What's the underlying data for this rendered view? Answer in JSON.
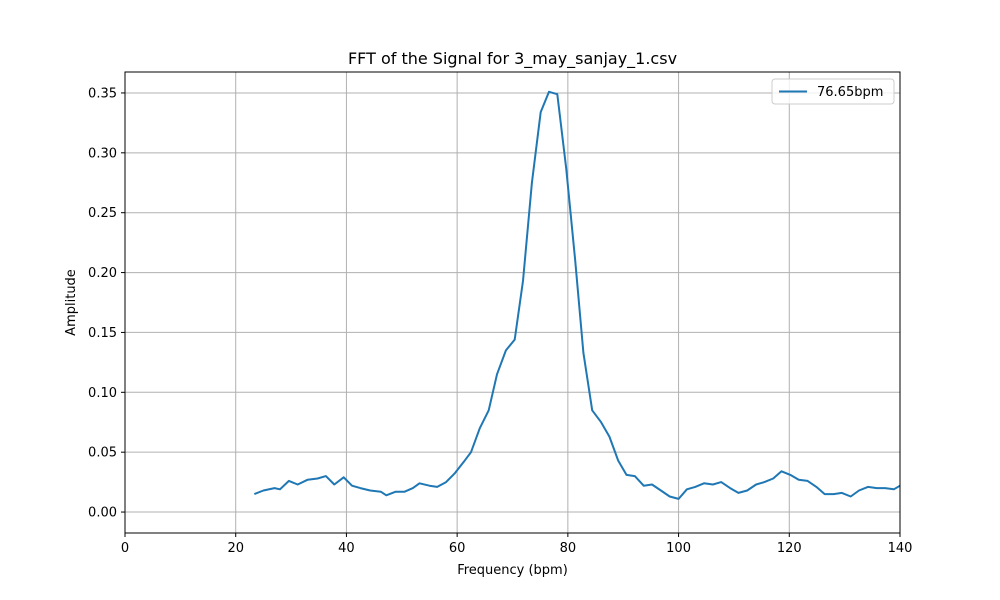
{
  "chart_data": {
    "type": "line",
    "title": "FFT of the Signal for 3_may_sanjay_1.csv",
    "xlabel": "Frequency (bpm)",
    "ylabel": "Amplitude",
    "xlim": [
      0,
      140
    ],
    "ylim": [
      -0.0175,
      0.3675
    ],
    "xticks": [
      0,
      20,
      40,
      60,
      80,
      100,
      120,
      140
    ],
    "xtick_labels": [
      "0",
      "20",
      "40",
      "60",
      "80",
      "100",
      "120",
      "140"
    ],
    "yticks": [
      0.0,
      0.05,
      0.1,
      0.15,
      0.2,
      0.25,
      0.3,
      0.35
    ],
    "ytick_labels": [
      "0.00",
      "0.05",
      "0.10",
      "0.15",
      "0.20",
      "0.25",
      "0.30",
      "0.35"
    ],
    "grid": true,
    "legend_position": "top-right",
    "series": [
      {
        "name": "76.65bpm",
        "color": "#1f77b4",
        "x": [
          23.36,
          25.0,
          27.0,
          28.0,
          29.6,
          31.2,
          33.0,
          34.8,
          36.3,
          37.8,
          39.5,
          41.0,
          42.5,
          44.3,
          46.2,
          47.2,
          48.9,
          50.5,
          52.0,
          53.2,
          55.0,
          56.4,
          58.0,
          59.5,
          61.2,
          62.5,
          64.1,
          65.7,
          67.2,
          68.8,
          70.4,
          71.9,
          73.5,
          75.1,
          76.6,
          78.1,
          79.7,
          81.3,
          82.8,
          84.4,
          86.0,
          87.5,
          89.1,
          90.6,
          92.1,
          93.7,
          95.2,
          96.8,
          98.4,
          100.0,
          101.5,
          103.0,
          104.6,
          106.2,
          107.7,
          109.3,
          110.8,
          112.4,
          114.0,
          115.5,
          117.1,
          118.6,
          120.2,
          121.7,
          123.3,
          124.9,
          126.4,
          128.0,
          129.5,
          131.1,
          132.6,
          134.2,
          135.8,
          137.3,
          138.9,
          140.0
        ],
        "y": [
          0.015,
          0.018,
          0.02,
          0.019,
          0.026,
          0.023,
          0.027,
          0.028,
          0.03,
          0.023,
          0.029,
          0.022,
          0.02,
          0.018,
          0.017,
          0.014,
          0.017,
          0.017,
          0.02,
          0.024,
          0.022,
          0.021,
          0.025,
          0.032,
          0.042,
          0.05,
          0.07,
          0.085,
          0.115,
          0.135,
          0.144,
          0.193,
          0.275,
          0.334,
          0.351,
          0.349,
          0.287,
          0.211,
          0.133,
          0.085,
          0.075,
          0.063,
          0.043,
          0.031,
          0.03,
          0.022,
          0.023,
          0.018,
          0.013,
          0.011,
          0.019,
          0.021,
          0.024,
          0.023,
          0.025,
          0.02,
          0.016,
          0.018,
          0.023,
          0.025,
          0.028,
          0.034,
          0.031,
          0.027,
          0.026,
          0.021,
          0.015,
          0.015,
          0.016,
          0.013,
          0.018,
          0.021,
          0.02,
          0.02,
          0.019,
          0.022
        ]
      }
    ]
  }
}
